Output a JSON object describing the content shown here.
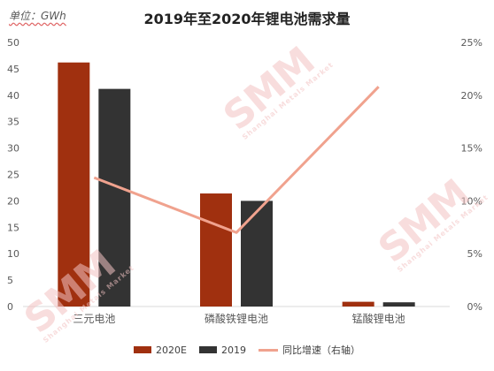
{
  "header": {
    "unit_label": "单位：GWh",
    "title": "2019年至2020年锂电池需求量"
  },
  "watermark": {
    "big": "SMM",
    "small": "Shanghai Metals Market"
  },
  "colors": {
    "s2020": "#a0300f",
    "s2019": "#333333",
    "growth": "#f0a28e",
    "axis_text": "#595959"
  },
  "chart_data": {
    "type": "bar",
    "title": "2019年至2020年锂电池需求量",
    "categories": [
      "三元电池",
      "磷酸铁锂电池",
      "锰酸锂电池"
    ],
    "series": [
      {
        "name": "2020E",
        "type": "bar",
        "axis": "left",
        "values": [
          46.2,
          21.4,
          0.9
        ]
      },
      {
        "name": "2019",
        "type": "bar",
        "axis": "left",
        "values": [
          41.2,
          20.0,
          0.8
        ]
      },
      {
        "name": "同比增速（右轴）",
        "type": "line",
        "axis": "right",
        "values": [
          12.2,
          7.0,
          20.8
        ]
      }
    ],
    "y_left": {
      "min": 0,
      "max": 50,
      "ticks": [
        "0",
        "5",
        "10",
        "15",
        "20",
        "25",
        "30",
        "35",
        "40",
        "45",
        "50"
      ]
    },
    "y_right": {
      "min": 0,
      "max": 25,
      "ticks": [
        "0%",
        "5%",
        "10%",
        "15%",
        "20%",
        "25%"
      ]
    },
    "grid": false,
    "legend_position": "bottom"
  }
}
